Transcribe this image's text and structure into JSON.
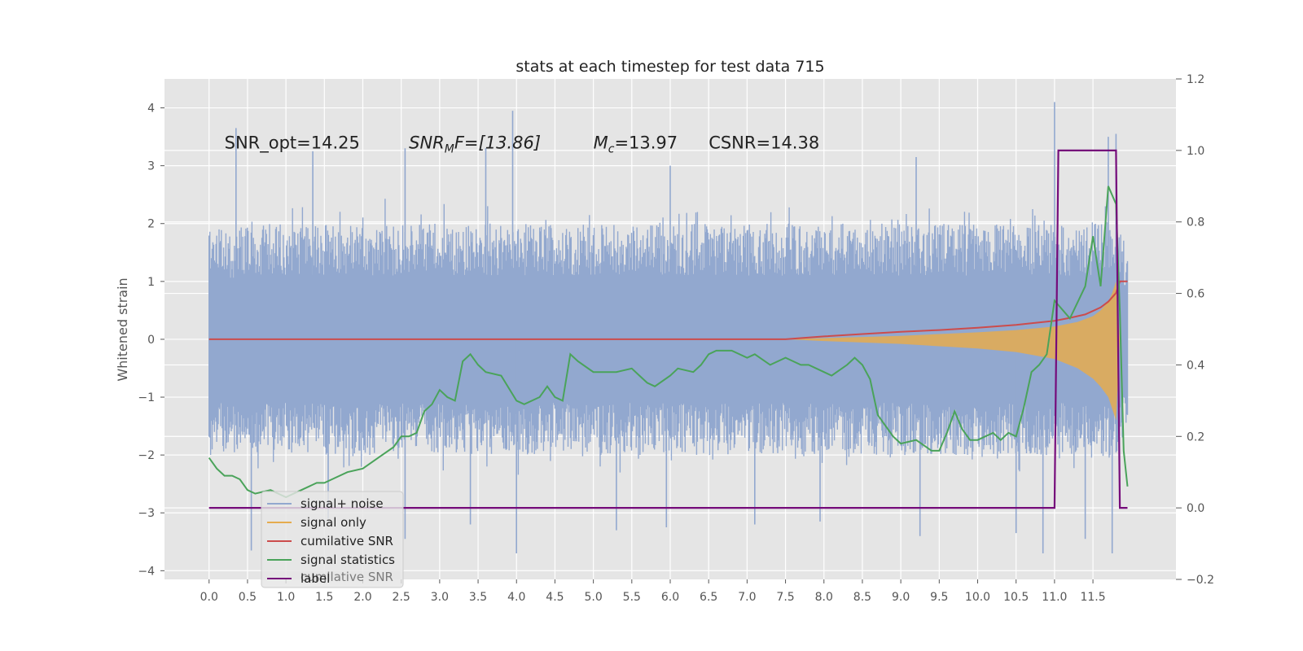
{
  "chart_data": {
    "type": "line",
    "title": "stats at each timestep for test data 715",
    "ylabel": "Whitened strain",
    "xlabel": "",
    "xlim": [
      -0.58,
      12.58
    ],
    "ylim": [
      -4.15,
      4.5
    ],
    "y2lim": [
      -0.2,
      1.2
    ],
    "xticks": [
      0.0,
      0.5,
      1.0,
      1.5,
      2.0,
      2.5,
      3.0,
      3.5,
      4.0,
      4.5,
      5.0,
      5.5,
      6.0,
      6.5,
      7.0,
      7.5,
      8.0,
      8.5,
      9.0,
      9.5,
      10.0,
      10.5,
      11.0,
      11.5
    ],
    "xtick_labels": [
      "0.0",
      "0.5",
      "1.0",
      "1.5",
      "2.0",
      "2.5",
      "3.0",
      "3.5",
      "4.0",
      "4.5",
      "5.0",
      "5.5",
      "6.0",
      "6.5",
      "7.0",
      "7.5",
      "8.0",
      "8.5",
      "9.0",
      "9.5",
      "10.0",
      "10.5",
      "11.0",
      "11.5"
    ],
    "yticks": [
      -4,
      -3,
      -2,
      -1,
      0,
      1,
      2,
      3,
      4
    ],
    "ytick_labels": [
      "−4",
      "−3",
      "−2",
      "−1",
      "0",
      "1",
      "2",
      "3",
      "4"
    ],
    "y2ticks": [
      -0.2,
      0.0,
      0.2,
      0.4,
      0.6,
      0.8,
      1.0,
      1.2
    ],
    "y2tick_labels": [
      "−0.2",
      "0.0",
      "0.2",
      "0.4",
      "0.6",
      "0.8",
      "1.0",
      "1.2"
    ],
    "grid": true,
    "legend_position": "lower-left",
    "annotations": [
      {
        "text": "SNR_opt=14.25",
        "x": 0.2,
        "y": 3.3
      },
      {
        "text": "SNR_MF=[13.86]",
        "base": "SNR",
        "sub": "M",
        "rest": "F=[13.86]",
        "x": 2.6,
        "y": 3.3
      },
      {
        "text": "M_c=13.97",
        "base": "M",
        "sub": "c",
        "rest": "=13.97",
        "x": 5.0,
        "y": 3.3
      },
      {
        "text": "CSNR=14.38",
        "x": 6.5,
        "y": 3.3
      }
    ],
    "series": [
      {
        "name": "signal+ noise",
        "axis": "left",
        "color": "#92a8cf",
        "style": "noise band",
        "upper_x": [
          0.0,
          1.0,
          2.0,
          3.0,
          4.0,
          5.0,
          6.0,
          7.0,
          8.0,
          9.0,
          10.0,
          11.0,
          11.5,
          11.7,
          11.8,
          11.95
        ],
        "upper": [
          1.9,
          2.0,
          2.0,
          2.0,
          2.0,
          2.0,
          2.0,
          2.0,
          2.0,
          2.0,
          2.0,
          2.0,
          2.0,
          2.1,
          2.1,
          1.4
        ],
        "lower": [
          -2.0,
          -2.0,
          -2.0,
          -2.0,
          -2.0,
          -2.0,
          -2.0,
          -2.0,
          -2.0,
          -2.0,
          -2.0,
          -2.0,
          -2.0,
          -2.1,
          -2.1,
          -1.5
        ],
        "spikes": [
          [
            0.35,
            3.65
          ],
          [
            1.35,
            3.25
          ],
          [
            2.55,
            3.3
          ],
          [
            3.6,
            3.3
          ],
          [
            3.95,
            3.95
          ],
          [
            6.0,
            3.0
          ],
          [
            9.2,
            3.15
          ],
          [
            11.0,
            4.1
          ],
          [
            11.7,
            3.5
          ],
          [
            11.8,
            3.55
          ],
          [
            0.55,
            -3.65
          ],
          [
            1.55,
            -3.1
          ],
          [
            2.55,
            -3.45
          ],
          [
            3.4,
            -3.2
          ],
          [
            4.0,
            -3.7
          ],
          [
            5.3,
            -3.3
          ],
          [
            5.95,
            -3.25
          ],
          [
            7.1,
            -3.2
          ],
          [
            7.95,
            -3.15
          ],
          [
            9.25,
            -3.4
          ],
          [
            10.5,
            -3.35
          ],
          [
            10.85,
            -3.7
          ],
          [
            11.4,
            -3.45
          ],
          [
            11.75,
            -3.7
          ]
        ]
      },
      {
        "name": "signal only",
        "axis": "left",
        "color": "#e5ac4f",
        "style": "chirp envelope",
        "x": [
          7.5,
          8.0,
          9.0,
          10.0,
          10.5,
          11.0,
          11.3,
          11.5,
          11.6,
          11.7,
          11.75,
          11.8,
          11.85
        ],
        "upper": [
          0.0,
          0.02,
          0.06,
          0.12,
          0.16,
          0.22,
          0.3,
          0.4,
          0.5,
          0.65,
          0.8,
          1.0,
          0.0
        ],
        "lower": [
          0.0,
          -0.03,
          -0.08,
          -0.16,
          -0.22,
          -0.34,
          -0.5,
          -0.68,
          -0.82,
          -1.0,
          -1.2,
          -1.4,
          0.0
        ]
      },
      {
        "name": "cumilative SNR",
        "axis": "left",
        "color": "#cc4c4c",
        "x": [
          0.0,
          7.5,
          8.0,
          8.5,
          9.0,
          9.5,
          10.0,
          10.5,
          11.0,
          11.2,
          11.4,
          11.6,
          11.7,
          11.8,
          11.85,
          11.95
        ],
        "values": [
          0.0,
          0.0,
          0.05,
          0.09,
          0.13,
          0.16,
          0.2,
          0.25,
          0.32,
          0.37,
          0.43,
          0.55,
          0.65,
          0.8,
          1.0,
          1.0
        ]
      },
      {
        "name": "signal statistics",
        "axis": "right",
        "color": "#4aa35a",
        "x": [
          0.0,
          0.1,
          0.2,
          0.3,
          0.4,
          0.5,
          0.6,
          0.8,
          1.0,
          1.2,
          1.4,
          1.5,
          1.6,
          1.8,
          2.0,
          2.2,
          2.4,
          2.5,
          2.6,
          2.7,
          2.8,
          2.9,
          3.0,
          3.1,
          3.2,
          3.3,
          3.4,
          3.5,
          3.6,
          3.8,
          4.0,
          4.1,
          4.3,
          4.4,
          4.5,
          4.6,
          4.7,
          4.8,
          5.0,
          5.1,
          5.3,
          5.5,
          5.6,
          5.7,
          5.8,
          6.0,
          6.1,
          6.3,
          6.4,
          6.5,
          6.6,
          6.8,
          7.0,
          7.1,
          7.3,
          7.5,
          7.6,
          7.7,
          7.8,
          8.0,
          8.1,
          8.3,
          8.4,
          8.5,
          8.6,
          8.7,
          8.9,
          9.0,
          9.2,
          9.4,
          9.5,
          9.6,
          9.7,
          9.8,
          9.9,
          10.0,
          10.2,
          10.3,
          10.4,
          10.5,
          10.6,
          10.7,
          10.8,
          10.9,
          11.0,
          11.2,
          11.4,
          11.5,
          11.6,
          11.7,
          11.8,
          11.85,
          11.9,
          11.95
        ],
        "values": [
          0.14,
          0.11,
          0.09,
          0.09,
          0.08,
          0.05,
          0.04,
          0.05,
          0.03,
          0.05,
          0.07,
          0.07,
          0.08,
          0.1,
          0.11,
          0.14,
          0.17,
          0.2,
          0.2,
          0.21,
          0.27,
          0.29,
          0.33,
          0.31,
          0.3,
          0.41,
          0.43,
          0.4,
          0.38,
          0.37,
          0.3,
          0.29,
          0.31,
          0.34,
          0.31,
          0.3,
          0.43,
          0.41,
          0.38,
          0.38,
          0.38,
          0.39,
          0.37,
          0.35,
          0.34,
          0.37,
          0.39,
          0.38,
          0.4,
          0.43,
          0.44,
          0.44,
          0.42,
          0.43,
          0.4,
          0.42,
          0.41,
          0.4,
          0.4,
          0.38,
          0.37,
          0.4,
          0.42,
          0.4,
          0.36,
          0.26,
          0.2,
          0.18,
          0.19,
          0.16,
          0.16,
          0.21,
          0.27,
          0.22,
          0.19,
          0.19,
          0.21,
          0.19,
          0.21,
          0.2,
          0.28,
          0.38,
          0.4,
          0.43,
          0.58,
          0.53,
          0.62,
          0.76,
          0.62,
          0.9,
          0.85,
          0.55,
          0.16,
          0.06
        ]
      },
      {
        "name": "label",
        "axis": "right",
        "color": "#750b7a",
        "x": [
          0.0,
          11.0,
          11.05,
          11.8,
          11.85,
          11.95
        ],
        "values": [
          0.0,
          0.0,
          1.0,
          1.0,
          0.0,
          0.0
        ]
      }
    ],
    "legend_overlap_text": "cumilative SNR"
  }
}
